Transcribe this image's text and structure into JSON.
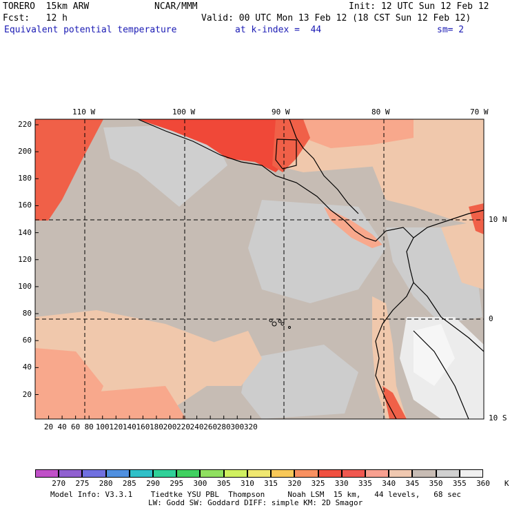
{
  "header": {
    "model": "TORERO  15km ARW",
    "center": "NCAR/MMM",
    "init": "Init: 12 UTC Sun 12 Feb 12",
    "fcst": "Fcst:   12 h",
    "valid": "Valid: 00 UTC Mon 13 Feb 12 (18 CST Sun 12 Feb 12)",
    "field": "Equivalent potential temperature",
    "level": "at k-index =  44",
    "smoothing": "sm= 2"
  },
  "map": {
    "lon_labels": [
      "110 W",
      "100 W",
      "90 W",
      "80 W",
      "70 W"
    ],
    "lat_labels": [
      "10 N",
      "0",
      "10 S"
    ],
    "x_ticks": [
      "20",
      "40",
      "60",
      "80",
      "100",
      "120",
      "140",
      "160",
      "180",
      "200",
      "220",
      "240",
      "260",
      "280",
      "300",
      "320"
    ],
    "y_ticks": [
      "220",
      "200",
      "180",
      "160",
      "140",
      "120",
      "100",
      "80",
      "60",
      "40",
      "20"
    ],
    "colors": {
      "background_fill": "#c6bcb4",
      "gray_light": "#cfcfcf",
      "tan_light": "#f0c8ac",
      "salmon": "#f8a88c",
      "red_warm": "#f06048",
      "red_hot": "#f04838",
      "white_cold": "#ececec",
      "coast": "#000000"
    }
  },
  "colorbar": {
    "labels": [
      "270",
      "275",
      "280",
      "285",
      "290",
      "295",
      "300",
      "305",
      "310",
      "315",
      "320",
      "325",
      "330",
      "335",
      "340",
      "345",
      "350",
      "355",
      "360",
      "K"
    ],
    "colors": [
      "#c050c8",
      "#9060d0",
      "#7070e0",
      "#5090e0",
      "#30c0c8",
      "#30d098",
      "#40d060",
      "#90e060",
      "#d0f060",
      "#f0e870",
      "#f8c858",
      "#f89060",
      "#f05040",
      "#f05850",
      "#f8a090",
      "#f0c8b0",
      "#c8bcb4",
      "#d0d0d0",
      "#f0f0f0"
    ]
  },
  "footer": {
    "line1": "Model Info: V3.3.1    Tiedtke YSU PBL  Thompson     Noah LSM  15 km,   44 levels,   68 sec",
    "line2": "LW: Godd SW: Goddard DIFF: simple KM: 2D Smagor"
  }
}
